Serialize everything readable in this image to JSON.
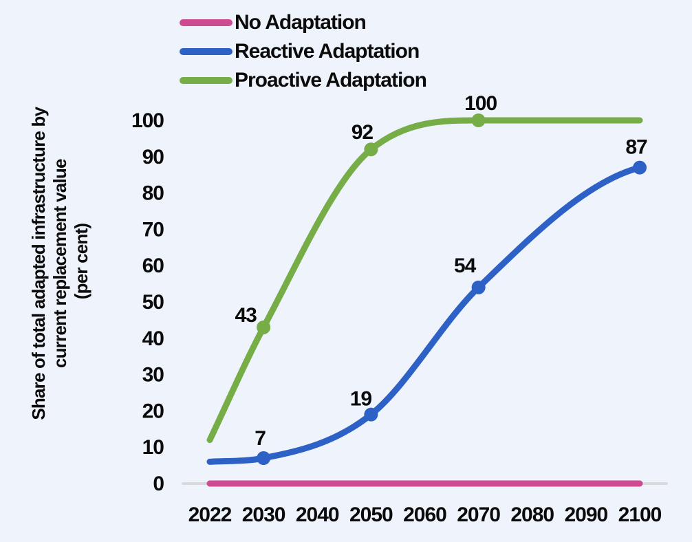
{
  "colors": {
    "background": "#eef3fc",
    "axis_line": "#dadadd",
    "text": "#0b0b0b"
  },
  "legend": {
    "items": [
      {
        "label": "No Adaptation",
        "color": "#ce4b92"
      },
      {
        "label": "Reactive Adaptation",
        "color": "#2e61c6"
      },
      {
        "label": "Proactive Adaptation",
        "color": "#76ad47"
      }
    ]
  },
  "chart_data": {
    "type": "line",
    "title": "",
    "xlabel": "",
    "ylabel": "Share of total adapted infrastructure by current replacement value (per cent)",
    "ylabel_lines": [
      "Share of total adapted infrastructure by",
      "current replacement value",
      "(per cent)"
    ],
    "x_categories": [
      "2022",
      "2030",
      "2040",
      "2050",
      "2060",
      "2070",
      "2080",
      "2090",
      "2100"
    ],
    "y_ticks": [
      0,
      10,
      20,
      30,
      40,
      50,
      60,
      70,
      80,
      90,
      100
    ],
    "ylim": [
      0,
      100
    ],
    "grid": false,
    "legend_position": "top-left",
    "series": [
      {
        "name": "No Adaptation",
        "color": "#ce4b92",
        "points": [
          {
            "x": "2022",
            "y": 0
          },
          {
            "x": "2100",
            "y": 0
          }
        ],
        "labeled_points": []
      },
      {
        "name": "Reactive Adaptation",
        "color": "#2e61c6",
        "points": [
          {
            "x": "2022",
            "y": 6
          },
          {
            "x": "2030",
            "y": 7
          },
          {
            "x": "2050",
            "y": 19
          },
          {
            "x": "2070",
            "y": 54
          },
          {
            "x": "2100",
            "y": 87
          }
        ],
        "labeled_points": [
          {
            "x": "2030",
            "y": 7,
            "label": "7",
            "dx": -5,
            "dy": -19
          },
          {
            "x": "2050",
            "y": 19,
            "label": "19",
            "dx": -15,
            "dy": -13
          },
          {
            "x": "2070",
            "y": 54,
            "label": "54",
            "dx": -20,
            "dy": -22
          },
          {
            "x": "2100",
            "y": 87,
            "label": "87",
            "dx": -5,
            "dy": -20
          }
        ]
      },
      {
        "name": "Proactive Adaptation",
        "color": "#76ad47",
        "points": [
          {
            "x": "2022",
            "y": 12
          },
          {
            "x": "2030",
            "y": 43
          },
          {
            "x": "2050",
            "y": 92
          },
          {
            "x": "2070",
            "y": 100
          },
          {
            "x": "2100",
            "y": 100
          }
        ],
        "labeled_points": [
          {
            "x": "2030",
            "y": 43,
            "label": "43",
            "dx": -26,
            "dy": -8
          },
          {
            "x": "2050",
            "y": 92,
            "label": "92",
            "dx": -13,
            "dy": -15
          },
          {
            "x": "2070",
            "y": 100,
            "label": "100",
            "dx": 3,
            "dy": -15
          }
        ]
      }
    ]
  }
}
